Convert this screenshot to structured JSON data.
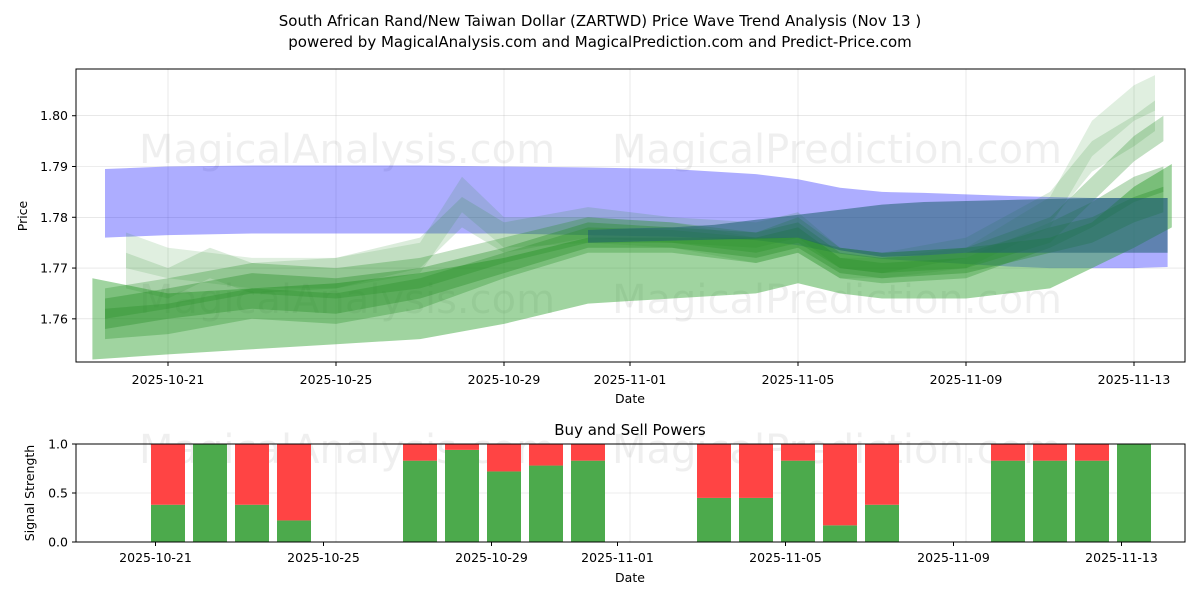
{
  "chart_data": [
    {
      "type": "area",
      "title_line1": "South African Rand/New Taiwan Dollar (ZARTWD) Price Wave Trend Analysis (Nov 13 )",
      "title_line2": "powered by MagicalAnalysis.com and MagicalPrediction.com and Predict-Price.com",
      "xlabel": "Date",
      "ylabel": "Price",
      "ylim": [
        1.7515,
        1.8092
      ],
      "x_ticks": [
        1,
        5,
        9,
        12,
        16,
        20,
        24
      ],
      "x_tick_labels": [
        "2025-10-21",
        "2025-10-25",
        "2025-10-29",
        "2025-11-01",
        "2025-11-05",
        "2025-11-09",
        "2025-11-13"
      ],
      "y_ticks": [
        1.76,
        1.77,
        1.78,
        1.79,
        1.8
      ],
      "y_tick_labels": [
        "1.76",
        "1.77",
        "1.78",
        "1.79",
        "1.80"
      ],
      "watermarks": [
        "MagicalAnalysis.com",
        "MagicalPrediction.com",
        "MagicalAnalysis.com",
        "MagicalPrediction.com"
      ],
      "colors": {
        "blue_band": "#0000ff",
        "green_band": "#228b22",
        "light_green": "#2ca02c"
      },
      "blue_band": {
        "x": [
          -0.5,
          1,
          3,
          5,
          7,
          9,
          11,
          13,
          15,
          16,
          17,
          18,
          19,
          20,
          21,
          22,
          23,
          24,
          24.8
        ],
        "upper": [
          1.7895,
          1.79,
          1.7902,
          1.7902,
          1.7902,
          1.79,
          1.7898,
          1.7895,
          1.7885,
          1.7875,
          1.7858,
          1.785,
          1.7848,
          1.7845,
          1.7842,
          1.784,
          1.7838,
          1.7838,
          1.7838
        ],
        "lower": [
          1.776,
          1.7765,
          1.7768,
          1.7768,
          1.7768,
          1.7768,
          1.7765,
          1.7762,
          1.7755,
          1.7745,
          1.7728,
          1.7718,
          1.7713,
          1.7708,
          1.7703,
          1.77,
          1.77,
          1.77,
          1.7702
        ]
      },
      "dark_band": {
        "x": [
          11,
          12,
          13,
          14,
          15,
          16,
          17,
          18,
          19,
          20,
          21,
          22,
          23,
          24,
          24.8
        ],
        "upper": [
          1.7775,
          1.7778,
          1.778,
          1.7785,
          1.7795,
          1.7805,
          1.7815,
          1.7825,
          1.783,
          1.7832,
          1.7834,
          1.7836,
          1.7838,
          1.7838,
          1.7838
        ],
        "lower": [
          1.775,
          1.7752,
          1.7754,
          1.7756,
          1.7758,
          1.776,
          1.7735,
          1.7722,
          1.7725,
          1.773,
          1.773,
          1.773,
          1.773,
          1.773,
          1.773
        ]
      },
      "green_bands": [
        {
          "x": [
            -0.5,
            1,
            3,
            5,
            7,
            9,
            11,
            13,
            15,
            16,
            17,
            18,
            20,
            22,
            23,
            24,
            24.7
          ],
          "upper": [
            1.764,
            1.766,
            1.769,
            1.768,
            1.77,
            1.774,
            1.779,
            1.778,
            1.777,
            1.779,
            1.773,
            1.772,
            1.773,
            1.778,
            1.78,
            1.784,
            1.786
          ],
          "lower": [
            1.758,
            1.76,
            1.762,
            1.761,
            1.764,
            1.769,
            1.774,
            1.774,
            1.772,
            1.774,
            1.769,
            1.768,
            1.769,
            1.773,
            1.775,
            1.779,
            1.781
          ]
        },
        {
          "x": [
            -0.5,
            1,
            3,
            5,
            7,
            9,
            11,
            13,
            15,
            16,
            17,
            18,
            20,
            22,
            23,
            24,
            24.7
          ],
          "upper": [
            1.762,
            1.763,
            1.766,
            1.765,
            1.768,
            1.773,
            1.778,
            1.7775,
            1.776,
            1.778,
            1.772,
            1.771,
            1.772,
            1.779,
            1.783,
            1.788,
            1.79
          ],
          "lower": [
            1.756,
            1.757,
            1.76,
            1.759,
            1.762,
            1.768,
            1.773,
            1.773,
            1.771,
            1.773,
            1.768,
            1.767,
            1.768,
            1.774,
            1.778,
            1.783,
            1.785
          ]
        },
        {
          "x": [
            -0.5,
            1,
            3,
            5,
            7,
            9,
            11,
            13,
            15,
            16,
            17,
            18,
            20,
            22,
            23,
            24,
            24.7
          ],
          "upper": [
            1.766,
            1.768,
            1.771,
            1.77,
            1.772,
            1.776,
            1.78,
            1.779,
            1.777,
            1.78,
            1.774,
            1.773,
            1.774,
            1.78,
            1.788,
            1.796,
            1.8
          ],
          "lower": [
            1.76,
            1.762,
            1.765,
            1.764,
            1.766,
            1.771,
            1.775,
            1.775,
            1.773,
            1.775,
            1.77,
            1.769,
            1.77,
            1.775,
            1.783,
            1.791,
            1.795
          ]
        },
        {
          "x": [
            0,
            1,
            2,
            3,
            5,
            7,
            8,
            9,
            11,
            13,
            15,
            16,
            17,
            18,
            20,
            22,
            23,
            24,
            24.5
          ],
          "upper": [
            1.777,
            1.774,
            1.773,
            1.772,
            1.772,
            1.775,
            1.788,
            1.78,
            1.78,
            1.779,
            1.776,
            1.778,
            1.772,
            1.772,
            1.774,
            1.784,
            1.799,
            1.806,
            1.808
          ],
          "lower": [
            1.77,
            1.768,
            1.767,
            1.766,
            1.766,
            1.769,
            1.781,
            1.774,
            1.775,
            1.774,
            1.771,
            1.773,
            1.768,
            1.768,
            1.77,
            1.778,
            1.792,
            1.799,
            1.801
          ]
        },
        {
          "x": [
            0,
            1,
            2,
            3,
            5,
            7,
            8,
            9,
            11,
            13,
            15,
            16,
            17,
            18,
            20,
            22,
            23,
            24,
            24.5
          ],
          "upper": [
            1.773,
            1.77,
            1.774,
            1.771,
            1.772,
            1.776,
            1.784,
            1.779,
            1.782,
            1.78,
            1.779,
            1.781,
            1.774,
            1.773,
            1.776,
            1.785,
            1.795,
            1.8,
            1.803
          ],
          "lower": [
            1.766,
            1.764,
            1.768,
            1.765,
            1.766,
            1.77,
            1.778,
            1.773,
            1.776,
            1.775,
            1.774,
            1.776,
            1.77,
            1.769,
            1.772,
            1.779,
            1.789,
            1.794,
            1.797
          ]
        }
      ],
      "green_wide_band": {
        "x": [
          -0.8,
          1,
          3,
          5,
          7,
          9,
          11,
          13,
          15,
          16,
          17,
          18,
          20,
          22,
          23,
          24,
          24.9
        ],
        "upper": [
          1.768,
          1.765,
          1.766,
          1.767,
          1.769,
          1.772,
          1.776,
          1.776,
          1.776,
          1.776,
          1.774,
          1.773,
          1.774,
          1.776,
          1.779,
          1.786,
          1.7905
        ],
        "lower": [
          1.752,
          1.753,
          1.754,
          1.755,
          1.756,
          1.759,
          1.763,
          1.764,
          1.765,
          1.767,
          1.765,
          1.764,
          1.764,
          1.766,
          1.77,
          1.774,
          1.778
        ]
      }
    },
    {
      "type": "bar",
      "title": "Buy and Sell Powers",
      "xlabel": "Date",
      "ylabel": "Signal Strength",
      "ylim": [
        0,
        1
      ],
      "y_ticks": [
        0,
        0.5,
        1
      ],
      "y_tick_labels": [
        "0.0",
        "0.5",
        "1.0"
      ],
      "x_ticks": [
        1,
        5,
        9,
        12,
        16,
        20,
        24
      ],
      "x_tick_labels": [
        "2025-10-21",
        "2025-10-25",
        "2025-10-29",
        "2025-11-01",
        "2025-11-05",
        "2025-11-09",
        "2025-11-13"
      ],
      "watermarks": [
        "MagicalAnalysis.com",
        "MagicalPrediction.com"
      ],
      "colors": {
        "buy": "#4caa4c",
        "sell": "#ff4444"
      },
      "x": [
        1,
        2,
        3,
        4,
        7,
        8,
        9,
        10,
        11,
        14,
        15,
        16,
        17,
        18,
        21,
        22,
        23,
        24
      ],
      "buy": [
        0.38,
        1.0,
        0.38,
        0.22,
        0.83,
        0.94,
        0.72,
        0.78,
        0.83,
        0.45,
        0.45,
        0.83,
        0.17,
        0.38,
        0.83,
        0.83,
        0.83,
        1.0
      ],
      "sell": [
        0.62,
        0.0,
        0.62,
        0.78,
        0.17,
        0.06,
        0.28,
        0.22,
        0.17,
        0.55,
        0.55,
        0.17,
        0.83,
        0.62,
        0.17,
        0.17,
        0.17,
        0.0
      ]
    }
  ]
}
